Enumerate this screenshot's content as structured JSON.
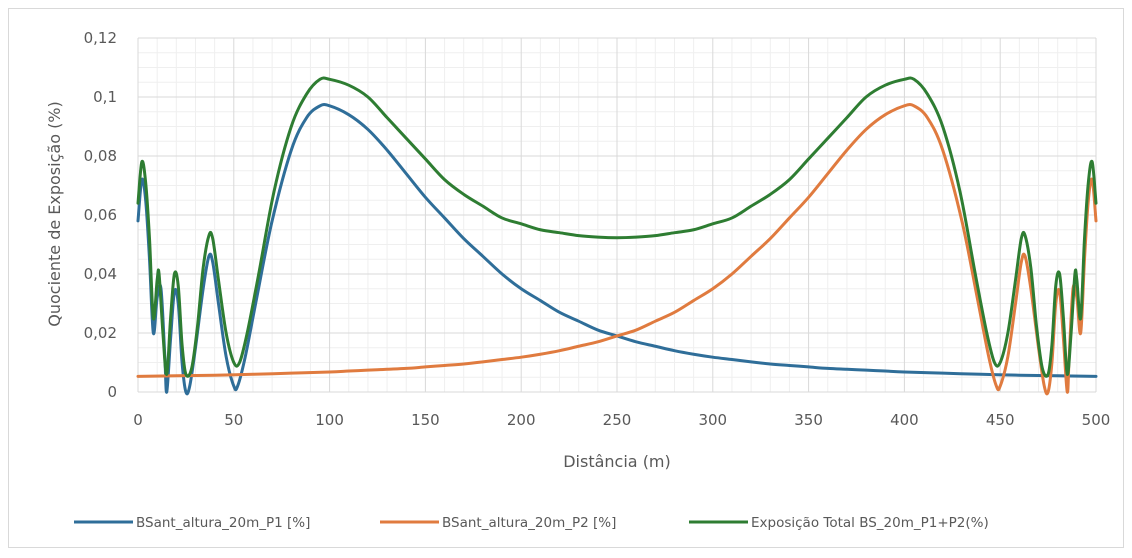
{
  "chart_data": {
    "type": "line",
    "title": "",
    "xlabel": "Distância (m)",
    "ylabel": "Quociente de Exposição (%)",
    "xlim": [
      0,
      500
    ],
    "ylim": [
      0,
      0.12
    ],
    "x_ticks": [
      "0",
      "50",
      "100",
      "150",
      "200",
      "250",
      "300",
      "350",
      "400",
      "450",
      "500"
    ],
    "y_ticks": [
      "0",
      "0,02",
      "0,04",
      "0,06",
      "0,08",
      "0,1",
      "0,12"
    ],
    "grid": true,
    "legend_position": "bottom",
    "series": [
      {
        "name": "BSant_altura_20m_P1 [%]",
        "color": "#2f6e99",
        "points": [
          [
            0,
            0.058
          ],
          [
            2,
            0.072
          ],
          [
            4,
            0.065
          ],
          [
            6,
            0.045
          ],
          [
            8,
            0.02
          ],
          [
            10,
            0.032
          ],
          [
            12,
            0.035
          ],
          [
            14,
            0.012
          ],
          [
            15,
            0.0
          ],
          [
            17,
            0.018
          ],
          [
            19,
            0.034
          ],
          [
            21,
            0.03
          ],
          [
            23,
            0.01
          ],
          [
            25,
            0.0
          ],
          [
            27,
            0.002
          ],
          [
            30,
            0.015
          ],
          [
            34,
            0.035
          ],
          [
            37,
            0.046
          ],
          [
            39,
            0.044
          ],
          [
            42,
            0.03
          ],
          [
            46,
            0.012
          ],
          [
            50,
            0.002
          ],
          [
            52,
            0.002
          ],
          [
            56,
            0.012
          ],
          [
            62,
            0.032
          ],
          [
            70,
            0.058
          ],
          [
            80,
            0.082
          ],
          [
            88,
            0.093
          ],
          [
            95,
            0.097
          ],
          [
            100,
            0.097
          ],
          [
            110,
            0.094
          ],
          [
            120,
            0.089
          ],
          [
            130,
            0.082
          ],
          [
            140,
            0.074
          ],
          [
            150,
            0.066
          ],
          [
            160,
            0.059
          ],
          [
            170,
            0.052
          ],
          [
            180,
            0.046
          ],
          [
            190,
            0.04
          ],
          [
            200,
            0.035
          ],
          [
            210,
            0.031
          ],
          [
            220,
            0.027
          ],
          [
            230,
            0.024
          ],
          [
            240,
            0.021
          ],
          [
            250,
            0.019
          ],
          [
            260,
            0.017
          ],
          [
            270,
            0.0155
          ],
          [
            280,
            0.014
          ],
          [
            290,
            0.0128
          ],
          [
            300,
            0.0118
          ],
          [
            310,
            0.011
          ],
          [
            320,
            0.0102
          ],
          [
            330,
            0.0095
          ],
          [
            340,
            0.009
          ],
          [
            350,
            0.0085
          ],
          [
            360,
            0.008
          ],
          [
            370,
            0.0077
          ],
          [
            380,
            0.0074
          ],
          [
            390,
            0.0071
          ],
          [
            400,
            0.0068
          ],
          [
            420,
            0.0064
          ],
          [
            440,
            0.006
          ],
          [
            460,
            0.0057
          ],
          [
            480,
            0.0055
          ],
          [
            500,
            0.0053
          ]
        ]
      },
      {
        "name": "BSant_altura_20m_P2 [%]",
        "color": "#e07b3f",
        "points": [
          [
            0,
            0.0053
          ],
          [
            20,
            0.0055
          ],
          [
            40,
            0.0057
          ],
          [
            60,
            0.006
          ],
          [
            80,
            0.0064
          ],
          [
            100,
            0.0068
          ],
          [
            110,
            0.0071
          ],
          [
            120,
            0.0074
          ],
          [
            130,
            0.0077
          ],
          [
            140,
            0.008
          ],
          [
            150,
            0.0085
          ],
          [
            160,
            0.009
          ],
          [
            170,
            0.0095
          ],
          [
            180,
            0.0102
          ],
          [
            190,
            0.011
          ],
          [
            200,
            0.0118
          ],
          [
            210,
            0.0128
          ],
          [
            220,
            0.014
          ],
          [
            230,
            0.0155
          ],
          [
            240,
            0.017
          ],
          [
            250,
            0.019
          ],
          [
            260,
            0.021
          ],
          [
            270,
            0.024
          ],
          [
            280,
            0.027
          ],
          [
            290,
            0.031
          ],
          [
            300,
            0.035
          ],
          [
            310,
            0.04
          ],
          [
            320,
            0.046
          ],
          [
            330,
            0.052
          ],
          [
            340,
            0.059
          ],
          [
            350,
            0.066
          ],
          [
            360,
            0.074
          ],
          [
            370,
            0.082
          ],
          [
            380,
            0.089
          ],
          [
            390,
            0.094
          ],
          [
            400,
            0.097
          ],
          [
            405,
            0.097
          ],
          [
            412,
            0.093
          ],
          [
            420,
            0.082
          ],
          [
            430,
            0.058
          ],
          [
            438,
            0.032
          ],
          [
            444,
            0.012
          ],
          [
            448,
            0.002
          ],
          [
            450,
            0.002
          ],
          [
            454,
            0.012
          ],
          [
            458,
            0.03
          ],
          [
            461,
            0.044
          ],
          [
            463,
            0.046
          ],
          [
            466,
            0.035
          ],
          [
            470,
            0.015
          ],
          [
            473,
            0.002
          ],
          [
            475,
            0.0
          ],
          [
            477,
            0.01
          ],
          [
            479,
            0.03
          ],
          [
            481,
            0.034
          ],
          [
            483,
            0.018
          ],
          [
            485,
            0.0
          ],
          [
            486,
            0.012
          ],
          [
            488,
            0.035
          ],
          [
            490,
            0.032
          ],
          [
            492,
            0.02
          ],
          [
            494,
            0.045
          ],
          [
            496,
            0.065
          ],
          [
            498,
            0.072
          ],
          [
            500,
            0.058
          ]
        ]
      },
      {
        "name": "Exposição Total BS_20m_P1+P2(%)",
        "color": "#2e7d32",
        "points": [
          [
            0,
            0.064
          ],
          [
            2,
            0.078
          ],
          [
            4,
            0.071
          ],
          [
            6,
            0.052
          ],
          [
            8,
            0.025
          ],
          [
            10,
            0.038
          ],
          [
            11,
            0.04
          ],
          [
            13,
            0.02
          ],
          [
            15,
            0.006
          ],
          [
            17,
            0.025
          ],
          [
            19,
            0.04
          ],
          [
            21,
            0.036
          ],
          [
            23,
            0.016
          ],
          [
            25,
            0.006
          ],
          [
            28,
            0.008
          ],
          [
            31,
            0.022
          ],
          [
            34,
            0.042
          ],
          [
            37,
            0.053
          ],
          [
            39,
            0.052
          ],
          [
            42,
            0.038
          ],
          [
            46,
            0.02
          ],
          [
            50,
            0.01
          ],
          [
            53,
            0.01
          ],
          [
            57,
            0.02
          ],
          [
            63,
            0.04
          ],
          [
            71,
            0.068
          ],
          [
            80,
            0.09
          ],
          [
            88,
            0.101
          ],
          [
            95,
            0.106
          ],
          [
            100,
            0.106
          ],
          [
            110,
            0.104
          ],
          [
            120,
            0.1
          ],
          [
            130,
            0.093
          ],
          [
            140,
            0.086
          ],
          [
            150,
            0.079
          ],
          [
            160,
            0.072
          ],
          [
            170,
            0.067
          ],
          [
            180,
            0.063
          ],
          [
            190,
            0.059
          ],
          [
            200,
            0.057
          ],
          [
            210,
            0.055
          ],
          [
            220,
            0.054
          ],
          [
            230,
            0.053
          ],
          [
            240,
            0.0525
          ],
          [
            250,
            0.0523
          ],
          [
            260,
            0.0525
          ],
          [
            270,
            0.053
          ],
          [
            280,
            0.054
          ],
          [
            290,
            0.055
          ],
          [
            300,
            0.057
          ],
          [
            310,
            0.059
          ],
          [
            320,
            0.063
          ],
          [
            330,
            0.067
          ],
          [
            340,
            0.072
          ],
          [
            350,
            0.079
          ],
          [
            360,
            0.086
          ],
          [
            370,
            0.093
          ],
          [
            380,
            0.1
          ],
          [
            390,
            0.104
          ],
          [
            400,
            0.106
          ],
          [
            405,
            0.106
          ],
          [
            412,
            0.101
          ],
          [
            420,
            0.09
          ],
          [
            429,
            0.068
          ],
          [
            437,
            0.04
          ],
          [
            443,
            0.02
          ],
          [
            447,
            0.01
          ],
          [
            450,
            0.01
          ],
          [
            454,
            0.02
          ],
          [
            458,
            0.038
          ],
          [
            461,
            0.052
          ],
          [
            463,
            0.053
          ],
          [
            466,
            0.042
          ],
          [
            469,
            0.022
          ],
          [
            472,
            0.008
          ],
          [
            475,
            0.006
          ],
          [
            477,
            0.016
          ],
          [
            479,
            0.036
          ],
          [
            481,
            0.04
          ],
          [
            483,
            0.025
          ],
          [
            485,
            0.006
          ],
          [
            487,
            0.02
          ],
          [
            489,
            0.04
          ],
          [
            490,
            0.038
          ],
          [
            492,
            0.025
          ],
          [
            494,
            0.052
          ],
          [
            496,
            0.071
          ],
          [
            498,
            0.078
          ],
          [
            500,
            0.064
          ]
        ]
      }
    ]
  }
}
